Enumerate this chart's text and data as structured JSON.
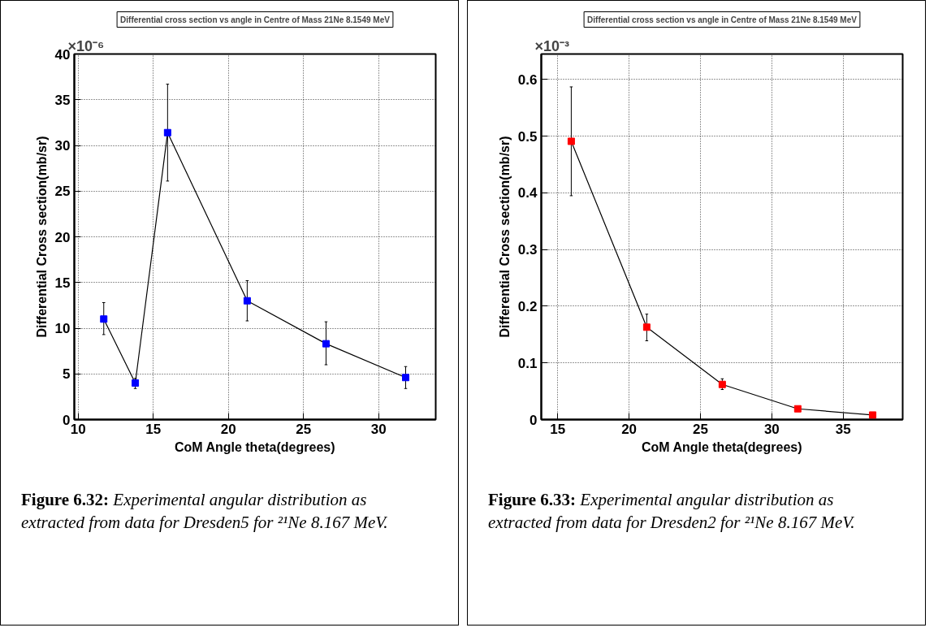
{
  "chart_data": [
    {
      "type": "line",
      "title": "Differential cross section vs angle in Centre of Mass 21Ne 8.1549 MeV",
      "xlabel": "CoM Angle theta(degrees)",
      "ylabel": "Differential Cross section(mb/sr)",
      "x": [
        11.7,
        13.8,
        15.95,
        21.25,
        26.5,
        31.8
      ],
      "series": [
        {
          "color": "#0000ff",
          "values": [
            11.0,
            4.0,
            31.4,
            13.0,
            8.3,
            4.6
          ],
          "errors": [
            [
              9.3,
              12.8
            ],
            [
              3.4,
              4.5
            ],
            [
              26.1,
              36.7
            ],
            [
              10.8,
              15.2
            ],
            [
              6.0,
              10.7
            ],
            [
              3.4,
              5.8
            ]
          ]
        }
      ],
      "xlim": [
        9.74,
        33.8
      ],
      "ylim": [
        0,
        40
      ],
      "xticks": [
        10,
        15,
        20,
        25,
        30
      ],
      "yticks": [
        0,
        5,
        10,
        15,
        20,
        25,
        30,
        35,
        40
      ],
      "grid": true,
      "marker": "square",
      "line_style": "solid",
      "annotations": [
        "×10⁻⁶",
        "Figure 6.32: Experimental angular distribution as extracted from data for Dresden5 for ²¹Ne 8.167 MeV."
      ]
    },
    {
      "type": "line",
      "title": "Differential cross section vs angle in Centre of Mass 21Ne 8.1549 MeV",
      "xlabel": "CoM Angle theta(degrees)",
      "ylabel": "Differential Cross section(mb/sr)",
      "x": [
        15.95,
        21.24,
        26.53,
        31.82,
        37.07
      ],
      "series": [
        {
          "color": "#ff0000",
          "values": [
            0.491,
            0.163,
            0.062,
            0.019,
            0.008
          ],
          "errors": [
            [
              0.395,
              0.587
            ],
            [
              0.139,
              0.186
            ],
            [
              0.053,
              0.072
            ],
            null,
            null
          ]
        }
      ],
      "xlim": [
        13.85,
        39.17
      ],
      "ylim": [
        0,
        0.645
      ],
      "xticks": [
        15,
        20,
        25,
        30,
        35
      ],
      "yticks": [
        0,
        0.1,
        0.2,
        0.3,
        0.4,
        0.5,
        0.6
      ],
      "grid": true,
      "marker": "square",
      "line_style": "solid",
      "annotations": [
        "×10⁻³",
        "Figure 6.33: Experimental angular distribution as extracted from data for Dresden2 for ²¹Ne 8.167 MeV."
      ]
    }
  ]
}
